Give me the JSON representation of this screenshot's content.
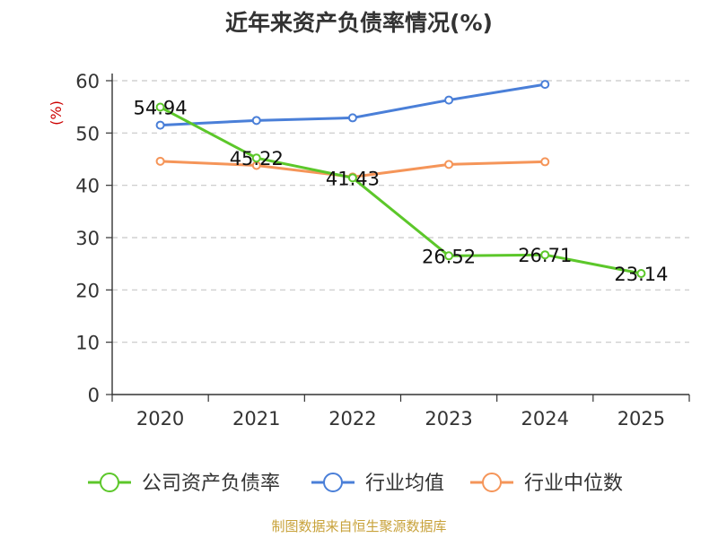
{
  "chart_data": {
    "type": "line",
    "title": "近年来资产负债率情况(%)",
    "ylabel": "(%)",
    "xlabel": "",
    "categories": [
      "2020",
      "2021",
      "2022",
      "2023",
      "2024",
      "2025"
    ],
    "ylim": [
      0,
      60
    ],
    "yticks": [
      0,
      10,
      20,
      30,
      40,
      50,
      60
    ],
    "grid": true,
    "legend_position": "bottom",
    "series": [
      {
        "name": "公司资产负债率",
        "color": "#5cc72a",
        "values": [
          54.94,
          45.22,
          41.43,
          26.52,
          26.71,
          23.14
        ],
        "data_labels": [
          "54.94",
          "45.22",
          "41.43",
          "26.52",
          "26.71",
          "23.14"
        ]
      },
      {
        "name": "行业均值",
        "color": "#4a7fd8",
        "values": [
          51.5,
          52.4,
          52.9,
          56.3,
          59.3,
          null
        ]
      },
      {
        "name": "行业中位数",
        "color": "#f59559",
        "values": [
          44.6,
          43.8,
          41.6,
          44.0,
          44.5,
          null
        ]
      }
    ],
    "source": "制图数据来自恒生聚源数据库"
  }
}
